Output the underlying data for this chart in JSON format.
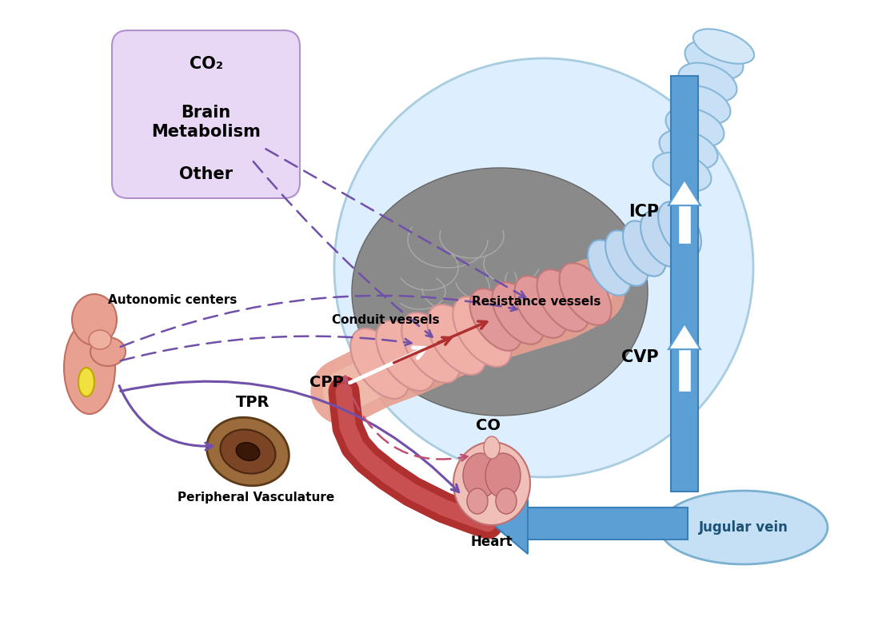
{
  "bg": "#ffffff",
  "blue": "#5b9fd4",
  "blue_light": "#aed6f1",
  "blue_edge": "#3a80b8",
  "blue_arrow_fill": "#7ab8d8",
  "salmon": "#e8a090",
  "salmon_dark": "#c07060",
  "pink_light": "#f0c0b0",
  "red_vessel": "#b03030",
  "red_vessel2": "#c85050",
  "purple": "#7050a8",
  "purple_light": "#9070c0",
  "box_fill": "#e8d8f5",
  "box_edge": "#b090cc",
  "gray_brain": "#888888",
  "gray_brain_edge": "#666666",
  "brown": "#9B6B3C",
  "brown_dark": "#5C3A18",
  "jugular_fill": "#c5e0f5",
  "jugular_edge": "#7ab0d0",
  "icp_label": "ICP",
  "cvp_label": "CVP",
  "jugular_label": "Jugular vein",
  "cpp_label": "CPP",
  "tpr_label": "TPR",
  "co_label": "CO",
  "heart_label": "Heart",
  "pv_label": "Peripheral Vasculature",
  "conduit_label": "Conduit vessels",
  "resistance_label": "Resistance vessels",
  "autonomic_label": "Autonomic centers",
  "co2_line1": "CO₂",
  "co2_line2": "Brain\nMetabolism",
  "co2_line3": "Other"
}
